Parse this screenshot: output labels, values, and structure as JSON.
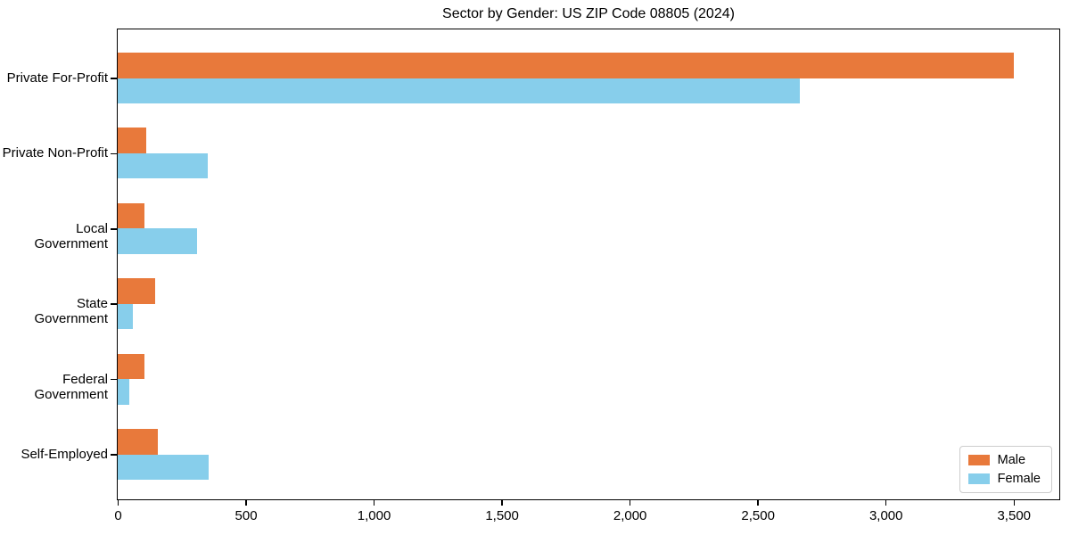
{
  "title": "Sector by Gender: US ZIP Code 08805 (2024)",
  "colors": {
    "male": "#E8793B",
    "female": "#87CEEB",
    "axis": "#000000",
    "legend_border": "#cccccc",
    "background": "#ffffff"
  },
  "legend": {
    "position": "lower right",
    "entries": [
      "Male",
      "Female"
    ]
  },
  "chart_data": {
    "type": "bar",
    "orientation": "horizontal",
    "title": "Sector by Gender: US ZIP Code 08805 (2024)",
    "categories": [
      "Private For-Profit",
      "Private Non-Profit",
      "Local Government",
      "State Government",
      "Federal Government",
      "Self-Employed"
    ],
    "series": [
      {
        "name": "Male",
        "color": "#E8793B",
        "values": [
          3500,
          112,
          105,
          146,
          105,
          157
        ]
      },
      {
        "name": "Female",
        "color": "#87CEEB",
        "values": [
          2666,
          352,
          310,
          59,
          45,
          356
        ]
      }
    ],
    "xlabel": "",
    "ylabel": "",
    "xlim": [
      0,
      3675
    ],
    "x_ticks": [
      0,
      500,
      1000,
      1500,
      2000,
      2500,
      3000,
      3500
    ],
    "x_tick_labels": [
      "0",
      "500",
      "1,000",
      "1,500",
      "2,000",
      "2,500",
      "3,000",
      "3,500"
    ],
    "grid": false,
    "legend_position": "lower right"
  }
}
